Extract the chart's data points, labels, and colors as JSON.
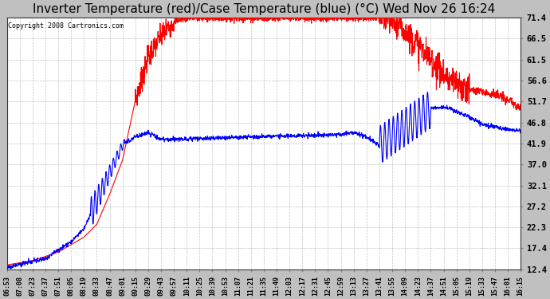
{
  "title": "Inverter Temperature (red)/Case Temperature (blue) (°C) Wed Nov 26 16:24",
  "copyright": "Copyright 2008 Cartronics.com",
  "yticks": [
    12.4,
    17.4,
    22.3,
    27.2,
    32.1,
    37.0,
    41.9,
    46.8,
    51.7,
    56.6,
    61.5,
    66.5,
    71.4
  ],
  "ymin": 12.4,
  "ymax": 71.4,
  "background_color": "#c0c0c0",
  "plot_bg_color": "#ffffff",
  "grid_color": "#aaaaaa",
  "title_fontsize": 11,
  "xtick_labels": [
    "06:53",
    "07:08",
    "07:23",
    "07:37",
    "07:51",
    "08:05",
    "08:19",
    "08:33",
    "08:47",
    "09:01",
    "09:15",
    "09:29",
    "09:43",
    "09:57",
    "10:11",
    "10:25",
    "10:39",
    "10:53",
    "11:07",
    "11:21",
    "11:35",
    "11:49",
    "12:03",
    "12:17",
    "12:31",
    "12:45",
    "12:59",
    "13:13",
    "13:27",
    "13:41",
    "13:55",
    "14:09",
    "14:23",
    "14:37",
    "14:51",
    "15:05",
    "15:19",
    "15:33",
    "15:47",
    "16:01",
    "16:15"
  ],
  "n_points": 41
}
